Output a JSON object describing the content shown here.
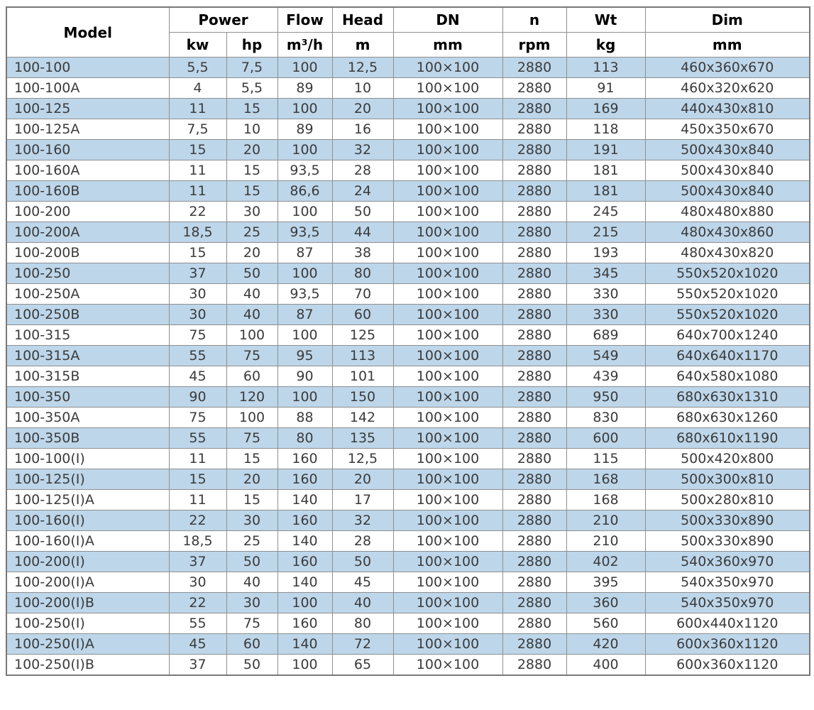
{
  "table": {
    "header": {
      "model": "Model",
      "power": "Power",
      "kw": "kw",
      "hp": "hp",
      "flow": "Flow",
      "flow_unit": "m³/h",
      "head": "Head",
      "head_unit": "m",
      "dn": "DN",
      "dn_unit": "mm",
      "n": "n",
      "n_unit": "rpm",
      "wt": "Wt",
      "wt_unit": "kg",
      "dim": "Dim",
      "dim_unit": "mm"
    }
  },
  "colors": {
    "stripe_blue": "#bdd6ea",
    "grid_border": "#8f8f8f",
    "outer_border": "#787878",
    "header_text": "#000000",
    "data_text": "#3b3b3b"
  },
  "chart_data": {
    "type": "table",
    "title": "Pump specification table",
    "columns": [
      "Model",
      "Power kw",
      "Power hp",
      "Flow m³/h",
      "Head m",
      "DN mm",
      "n rpm",
      "Wt kg",
      "Dim mm"
    ],
    "rows": [
      [
        "100-100",
        "5,5",
        "7,5",
        "100",
        "12,5",
        "100×100",
        "2880",
        "113",
        "460x360x670"
      ],
      [
        "100-100A",
        "4",
        "5,5",
        "89",
        "10",
        "100×100",
        "2880",
        "91",
        "460x320x620"
      ],
      [
        "100-125",
        "11",
        "15",
        "100",
        "20",
        "100×100",
        "2880",
        "169",
        "440x430x810"
      ],
      [
        "100-125A",
        "7,5",
        "10",
        "89",
        "16",
        "100×100",
        "2880",
        "118",
        "450x350x670"
      ],
      [
        "100-160",
        "15",
        "20",
        "100",
        "32",
        "100×100",
        "2880",
        "191",
        "500x430x840"
      ],
      [
        "100-160A",
        "11",
        "15",
        "93,5",
        "28",
        "100×100",
        "2880",
        "181",
        "500x430x840"
      ],
      [
        "100-160B",
        "11",
        "15",
        "86,6",
        "24",
        "100×100",
        "2880",
        "181",
        "500x430x840"
      ],
      [
        "100-200",
        "22",
        "30",
        "100",
        "50",
        "100×100",
        "2880",
        "245",
        "480x480x880"
      ],
      [
        "100-200A",
        "18,5",
        "25",
        "93,5",
        "44",
        "100×100",
        "2880",
        "215",
        "480x430x860"
      ],
      [
        "100-200B",
        "15",
        "20",
        "87",
        "38",
        "100×100",
        "2880",
        "193",
        "480x430x820"
      ],
      [
        "100-250",
        "37",
        "50",
        "100",
        "80",
        "100×100",
        "2880",
        "345",
        "550x520x1020"
      ],
      [
        "100-250A",
        "30",
        "40",
        "93,5",
        "70",
        "100×100",
        "2880",
        "330",
        "550x520x1020"
      ],
      [
        "100-250B",
        "30",
        "40",
        "87",
        "60",
        "100×100",
        "2880",
        "330",
        "550x520x1020"
      ],
      [
        "100-315",
        "75",
        "100",
        "100",
        "125",
        "100×100",
        "2880",
        "689",
        "640x700x1240"
      ],
      [
        "100-315A",
        "55",
        "75",
        "95",
        "113",
        "100×100",
        "2880",
        "549",
        "640x640x1170"
      ],
      [
        "100-315B",
        "45",
        "60",
        "90",
        "101",
        "100×100",
        "2880",
        "439",
        "640x580x1080"
      ],
      [
        "100-350",
        "90",
        "120",
        "100",
        "150",
        "100×100",
        "2880",
        "950",
        "680x630x1310"
      ],
      [
        "100-350A",
        "75",
        "100",
        "88",
        "142",
        "100×100",
        "2880",
        "830",
        "680x630x1260"
      ],
      [
        "100-350B",
        "55",
        "75",
        "80",
        "135",
        "100×100",
        "2880",
        "600",
        "680x610x1190"
      ],
      [
        "100-100(I)",
        "11",
        "15",
        "160",
        "12,5",
        "100×100",
        "2880",
        "115",
        "500x420x800"
      ],
      [
        "100-125(I)",
        "15",
        "20",
        "160",
        "20",
        "100×100",
        "2880",
        "168",
        "500x300x810"
      ],
      [
        "100-125(I)A",
        "11",
        "15",
        "140",
        "17",
        "100×100",
        "2880",
        "168",
        "500x280x810"
      ],
      [
        "100-160(I)",
        "22",
        "30",
        "160",
        "32",
        "100×100",
        "2880",
        "210",
        "500x330x890"
      ],
      [
        "100-160(I)A",
        "18,5",
        "25",
        "140",
        "28",
        "100×100",
        "2880",
        "210",
        "500x330x890"
      ],
      [
        "100-200(I)",
        "37",
        "50",
        "160",
        "50",
        "100×100",
        "2880",
        "402",
        "540x360x970"
      ],
      [
        "100-200(I)A",
        "30",
        "40",
        "140",
        "45",
        "100×100",
        "2880",
        "395",
        "540x350x970"
      ],
      [
        "100-200(I)B",
        "22",
        "30",
        "100",
        "40",
        "100×100",
        "2880",
        "360",
        "540x350x970"
      ],
      [
        "100-250(I)",
        "55",
        "75",
        "160",
        "80",
        "100×100",
        "2880",
        "560",
        "600x440x1120"
      ],
      [
        "100-250(I)A",
        "45",
        "60",
        "140",
        "72",
        "100×100",
        "2880",
        "420",
        "600x360x1120"
      ],
      [
        "100-250(I)B",
        "37",
        "50",
        "100",
        "65",
        "100×100",
        "2880",
        "400",
        "600x360x1120"
      ]
    ]
  }
}
